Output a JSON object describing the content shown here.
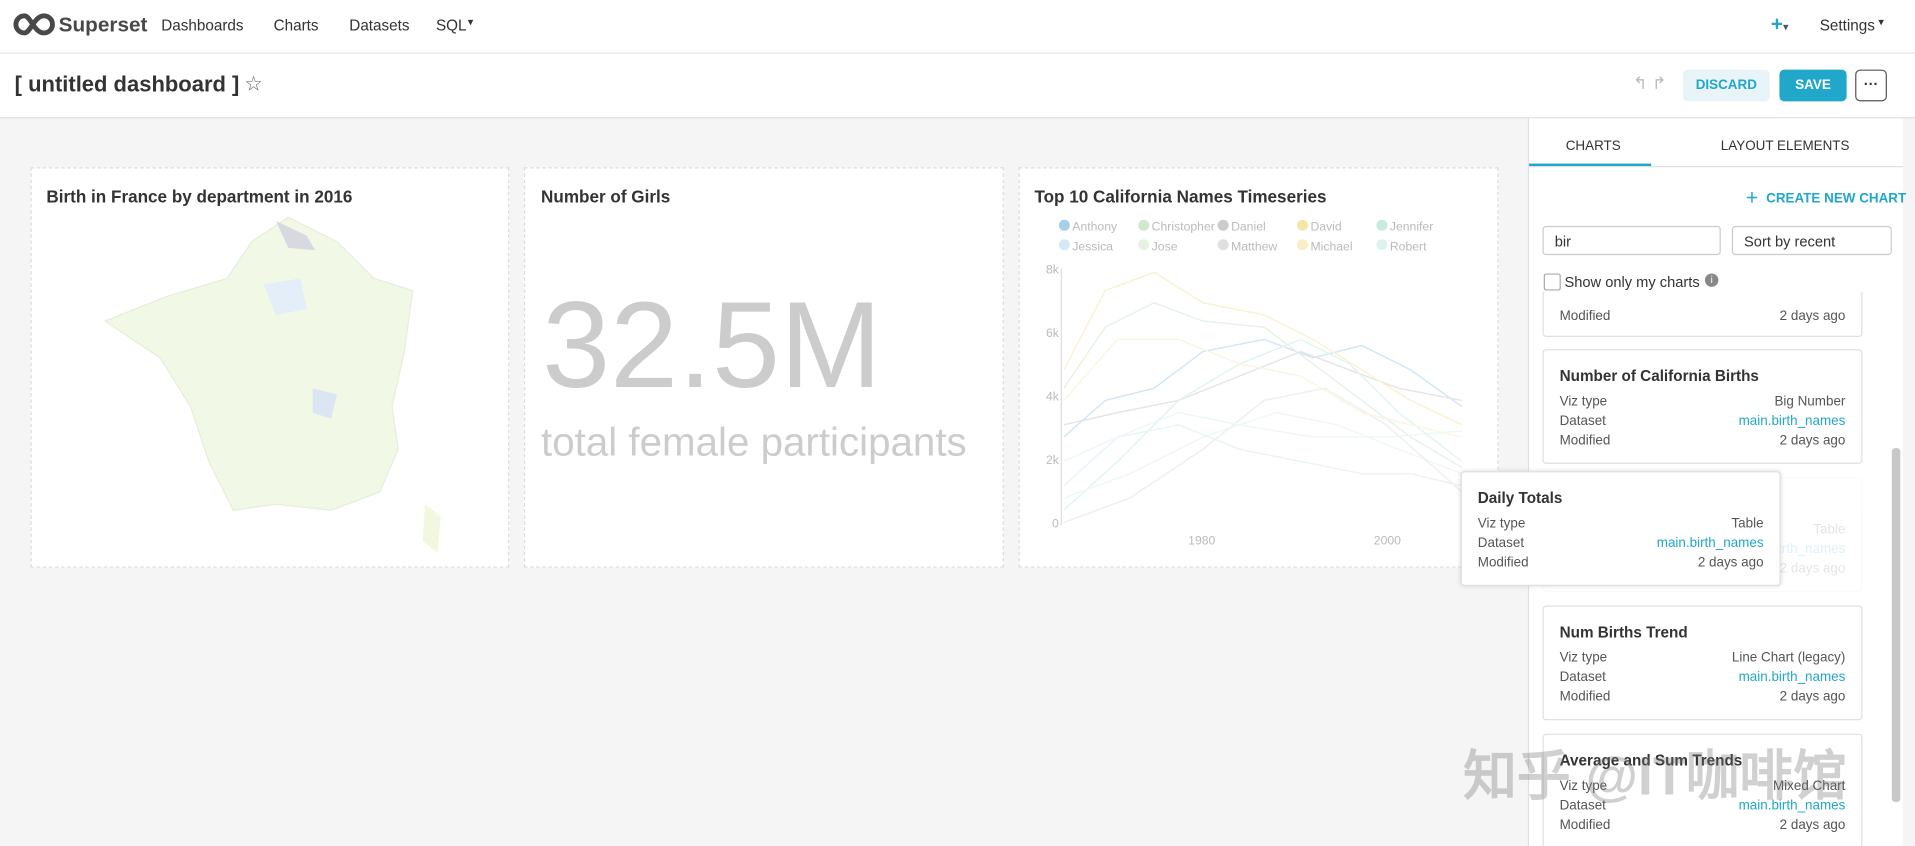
{
  "nav": {
    "brand": "Superset",
    "links": [
      "Dashboards",
      "Charts",
      "Datasets",
      "SQL"
    ],
    "settings": "Settings"
  },
  "header": {
    "title": "[ untitled dashboard ]",
    "discard": "DISCARD",
    "save": "SAVE"
  },
  "dashboard": {
    "charts": [
      {
        "title": "Birth in France by department in 2016"
      },
      {
        "title": "Number of Girls",
        "big_number": "32.5M",
        "subheader": "total female participants"
      },
      {
        "title": "Top 10 California Names Timeseries",
        "legend": [
          {
            "name": "Anthony",
            "color": "#a6cfe8"
          },
          {
            "name": "Christopher",
            "color": "#cfe8cf"
          },
          {
            "name": "Daniel",
            "color": "#cccccc"
          },
          {
            "name": "David",
            "color": "#f5e6a8"
          },
          {
            "name": "Jennifer",
            "color": "#c5ebe3"
          },
          {
            "name": "Jessica",
            "color": "#d6e8f5"
          },
          {
            "name": "Jose",
            "color": "#e3f2e3"
          },
          {
            "name": "Matthew",
            "color": "#e0e0e0"
          },
          {
            "name": "Michael",
            "color": "#f7efc8"
          },
          {
            "name": "Robert",
            "color": "#def2ef"
          }
        ],
        "yticks": [
          "0",
          "2k",
          "4k",
          "6k",
          "8k"
        ],
        "xticks": [
          "1980",
          "2000"
        ]
      }
    ]
  },
  "sidebar": {
    "tabs": [
      "CHARTS",
      "LAYOUT ELEMENTS"
    ],
    "create": "CREATE NEW CHART",
    "search": "bir",
    "sort": "Sort by recent",
    "only_mine": "Show only my charts",
    "field_labels": [
      "Viz type",
      "Dataset",
      "Modified"
    ],
    "partial_card": {
      "modified": "2 days ago"
    },
    "cards": [
      {
        "title": "Number of California Births",
        "viz": "Big Number",
        "dataset": "main.birth_names",
        "modified": "2 days ago"
      },
      {
        "title": "",
        "viz": "Table",
        "dataset": "main.birth_names",
        "modified": "2 days ago",
        "ghost": true
      },
      {
        "title": "Num Births Trend",
        "viz": "Line Chart (legacy)",
        "dataset": "main.birth_names",
        "modified": "2 days ago"
      },
      {
        "title": "Average and Sum Trends",
        "viz": "Mixed Chart",
        "dataset": "main.birth_names",
        "modified": "2 days ago"
      }
    ]
  },
  "drag_card": {
    "title": "Daily Totals",
    "viz": "Table",
    "dataset": "main.birth_names",
    "modified": "2 days ago"
  },
  "watermark": "知乎 @IT咖啡馆"
}
